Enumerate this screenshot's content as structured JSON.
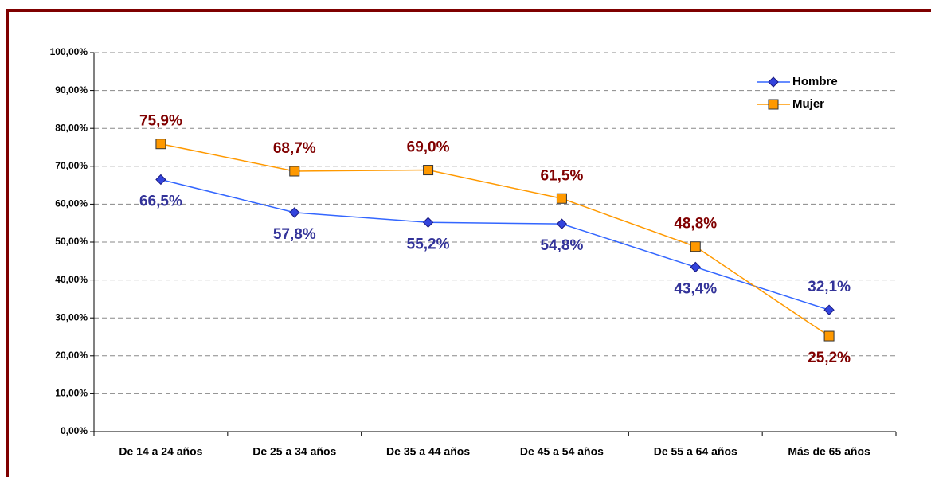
{
  "chart_data": {
    "type": "line",
    "categories": [
      "De 14 a 24 años",
      "De 25 a 34 años",
      "De 35 a 44 años",
      "De 45 a 54 años",
      "De 55 a 64 años",
      "Más de 65 años"
    ],
    "series": [
      {
        "name": "Hombre",
        "color": "#3366ff",
        "marker_color": "#3344dd",
        "label_color": "#333399",
        "marker": "diamond",
        "values": [
          66.5,
          57.8,
          55.2,
          54.8,
          43.4,
          32.1
        ],
        "value_labels": [
          "66,5%",
          "57,8%",
          "55,2%",
          "54,8%",
          "43,4%",
          "32,1%"
        ]
      },
      {
        "name": "Mujer",
        "color": "#ff9900",
        "marker_color": "#ff9900",
        "label_color": "#800000",
        "marker": "square",
        "values": [
          75.9,
          68.7,
          69.0,
          61.5,
          48.8,
          25.2
        ],
        "value_labels": [
          "75,9%",
          "68,7%",
          "69,0%",
          "61,5%",
          "48,8%",
          "25,2%"
        ]
      }
    ],
    "ylim": [
      0,
      100
    ],
    "yticks": [
      {
        "value": 0,
        "label": "0,00%"
      },
      {
        "value": 10,
        "label": "10,00%"
      },
      {
        "value": 20,
        "label": "20,00%"
      },
      {
        "value": 30,
        "label": "30,00%"
      },
      {
        "value": 40,
        "label": "40,00%"
      },
      {
        "value": 50,
        "label": "50,00%"
      },
      {
        "value": 60,
        "label": "60,00%"
      },
      {
        "value": 70,
        "label": "70,00%"
      },
      {
        "value": 80,
        "label": "80,00%"
      },
      {
        "value": 90,
        "label": "90,00%"
      },
      {
        "value": 100,
        "label": "100,00%"
      }
    ],
    "grid": true,
    "legend": "upper right"
  }
}
